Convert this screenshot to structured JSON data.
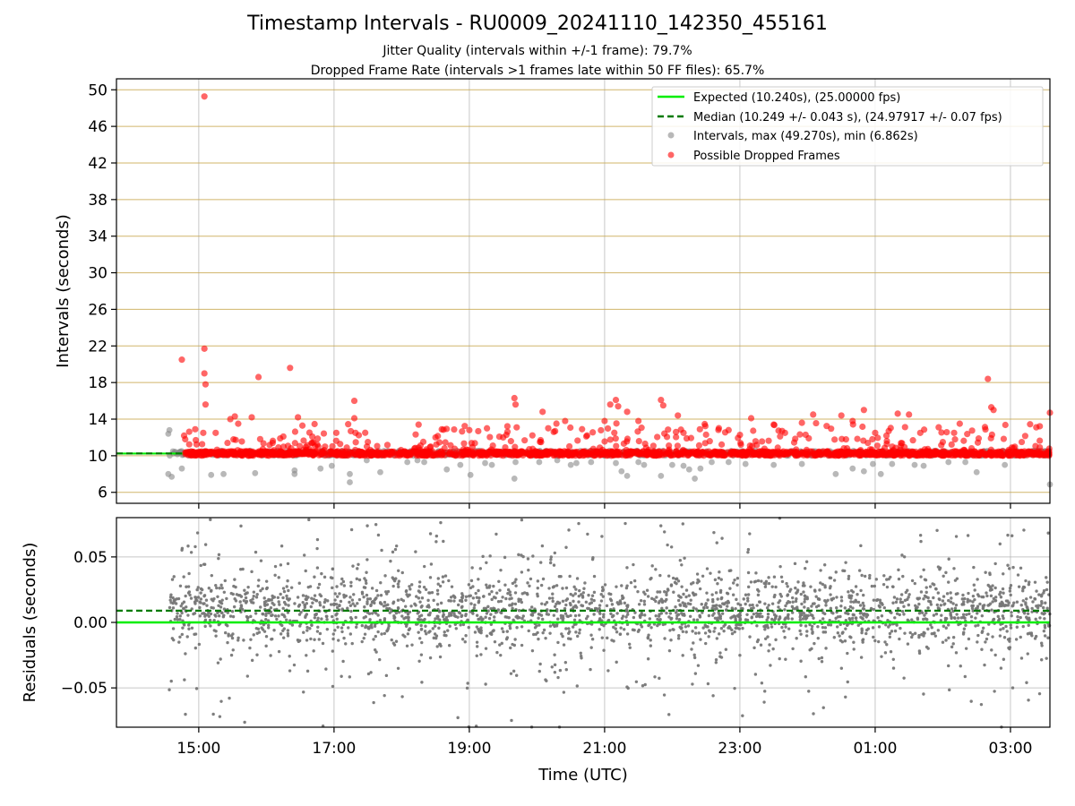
{
  "chart_data": [
    {
      "type": "scatter",
      "title": "Timestamp Intervals - RU0009_20241110_142350_455161",
      "subtitle_lines": [
        "Jitter Quality (intervals within +/-1 frame): 79.7%",
        "Dropped Frame Rate (intervals >1 frames late within 50 FF files): 65.7%"
      ],
      "xlabel": "",
      "ylabel": "Intervals (seconds)",
      "xlim": [
        "2024-11-10 13:47",
        "2024-11-11 03:35"
      ],
      "ylim": [
        4.8,
        51.2
      ],
      "y_ticks": [
        6,
        10,
        14,
        18,
        22,
        26,
        30,
        34,
        38,
        42,
        46,
        50
      ],
      "grid": true,
      "legend_position": "top-right",
      "expected_interval": 10.24,
      "median_interval": 10.249,
      "series": [
        {
          "name": "Expected (10.240s), (25.00000 fps)",
          "kind": "line",
          "color": "#00ee00",
          "value": 10.24
        },
        {
          "name": "Median (10.249 +/- 0.043 s), (24.97917 +/- 0.07 fps)",
          "kind": "dashed-line",
          "color": "#007a00",
          "value": 10.249
        },
        {
          "name": "Intervals, max (49.270s), min (6.862s)",
          "kind": "scatter",
          "color": "#888888",
          "x": [
            "2024-11-10 14:33",
            "2024-11-10 14:34",
            "2024-11-10 14:33",
            "2024-11-10 14:36",
            "2024-11-10 14:45",
            "2024-11-10 15:11",
            "2024-11-10 15:22",
            "2024-11-10 15:50",
            "2024-11-10 16:25",
            "2024-11-10 16:25",
            "2024-11-10 16:48",
            "2024-11-10 16:58",
            "2024-11-10 17:14",
            "2024-11-10 17:14",
            "2024-11-10 17:29",
            "2024-11-10 17:41",
            "2024-11-10 18:05",
            "2024-11-10 18:14",
            "2024-11-10 18:20",
            "2024-11-10 18:40",
            "2024-11-10 18:52",
            "2024-11-10 19:01",
            "2024-11-10 19:14",
            "2024-11-10 19:20",
            "2024-11-10 19:40",
            "2024-11-10 19:41",
            "2024-11-10 20:02",
            "2024-11-10 20:18",
            "2024-11-10 20:30",
            "2024-11-10 20:35",
            "2024-11-10 20:48",
            "2024-11-10 21:10",
            "2024-11-10 21:15",
            "2024-11-10 21:20",
            "2024-11-10 21:30",
            "2024-11-10 21:35",
            "2024-11-10 21:50",
            "2024-11-10 22:00",
            "2024-11-10 22:10",
            "2024-11-10 22:15",
            "2024-11-10 22:20",
            "2024-11-10 22:25",
            "2024-11-10 22:35",
            "2024-11-10 22:50",
            "2024-11-10 23:05",
            "2024-11-10 23:30",
            "2024-11-10 23:55",
            "2024-11-11 00:25",
            "2024-11-11 00:40",
            "2024-11-11 00:50",
            "2024-11-11 00:58",
            "2024-11-11 01:05",
            "2024-11-11 01:15",
            "2024-11-11 01:35",
            "2024-11-11 01:43",
            "2024-11-11 02:05",
            "2024-11-11 02:20",
            "2024-11-11 02:30",
            "2024-11-11 02:55",
            "2024-11-11 03:35"
          ],
          "y": [
            12.4,
            12.8,
            8.0,
            7.7,
            8.6,
            7.9,
            8.0,
            8.1,
            8.0,
            8.4,
            8.6,
            8.9,
            7.1,
            8.0,
            9.5,
            8.2,
            9.3,
            9.5,
            9.3,
            8.5,
            9.0,
            7.9,
            9.2,
            9.0,
            7.5,
            9.3,
            9.3,
            9.5,
            9.0,
            9.2,
            9.3,
            9.2,
            8.3,
            7.8,
            9.3,
            9.0,
            7.8,
            9.0,
            8.9,
            8.5,
            7.5,
            8.6,
            9.3,
            9.3,
            9.1,
            9.0,
            9.1,
            8.0,
            8.6,
            8.3,
            9.1,
            8.0,
            9.1,
            9.0,
            8.9,
            9.3,
            9.3,
            8.2,
            9.0,
            6.862
          ]
        },
        {
          "name": "Possible Dropped Frames",
          "kind": "scatter",
          "color": "#ff0000",
          "x": [
            "2024-11-10 14:45",
            "2024-11-10 14:47",
            "2024-11-10 14:48",
            "2024-11-10 15:04",
            "2024-11-10 15:05",
            "2024-11-10 15:05",
            "2024-11-10 15:05",
            "2024-11-10 15:06",
            "2024-11-10 15:06",
            "2024-11-10 15:15",
            "2024-11-10 15:28",
            "2024-11-10 15:32",
            "2024-11-10 15:35",
            "2024-11-10 15:47",
            "2024-11-10 15:53",
            "2024-11-10 16:21",
            "2024-11-10 16:28",
            "2024-11-10 16:52",
            "2024-11-10 17:02",
            "2024-11-10 17:18",
            "2024-11-10 17:18",
            "2024-11-10 17:19",
            "2024-11-10 17:30",
            "2024-11-10 18:15",
            "2024-11-10 18:30",
            "2024-11-10 19:00",
            "2024-11-10 19:30",
            "2024-11-10 19:40",
            "2024-11-10 19:41",
            "2024-11-10 19:42",
            "2024-11-10 20:05",
            "2024-11-10 20:10",
            "2024-11-10 20:25",
            "2024-11-10 20:40",
            "2024-11-10 21:00",
            "2024-11-10 21:05",
            "2024-11-10 21:10",
            "2024-11-10 21:12",
            "2024-11-10 21:20",
            "2024-11-10 21:30",
            "2024-11-10 21:50",
            "2024-11-10 21:52",
            "2024-11-10 22:05",
            "2024-11-10 22:10",
            "2024-11-10 22:30",
            "2024-11-10 22:50",
            "2024-11-10 23:10",
            "2024-11-10 23:30",
            "2024-11-10 23:40",
            "2024-11-10 23:55",
            "2024-11-11 00:05",
            "2024-11-11 00:30",
            "2024-11-11 00:40",
            "2024-11-11 00:50",
            "2024-11-11 01:00",
            "2024-11-11 01:10",
            "2024-11-11 01:20",
            "2024-11-11 01:30",
            "2024-11-11 01:40",
            "2024-11-11 02:00",
            "2024-11-11 02:10",
            "2024-11-11 02:15",
            "2024-11-11 02:40",
            "2024-11-11 02:43",
            "2024-11-11 02:45",
            "2024-11-11 03:10",
            "2024-11-11 03:35"
          ],
          "y": [
            20.5,
            12.2,
            11.8,
            12.5,
            49.27,
            21.7,
            19.0,
            17.8,
            15.6,
            12.5,
            14.0,
            14.3,
            13.5,
            14.2,
            18.6,
            19.6,
            14.2,
            11.0,
            12.5,
            16.0,
            14.1,
            12.5,
            11.5,
            13.4,
            12.0,
            12.8,
            12.0,
            16.3,
            15.6,
            13.1,
            14.8,
            13.0,
            13.8,
            12.9,
            13.8,
            15.6,
            16.1,
            15.4,
            14.8,
            13.8,
            16.1,
            15.5,
            14.4,
            12.5,
            12.3,
            12.8,
            14.1,
            13.4,
            12.5,
            13.6,
            14.5,
            14.4,
            13.8,
            15.0,
            12.5,
            12.2,
            14.6,
            14.5,
            12.5,
            11.5,
            12.5,
            13.5,
            18.4,
            15.3,
            15.0,
            11.5,
            14.7
          ],
          "dense_band": {
            "from": "2024-11-10 14:48",
            "to": "2024-11-11 03:35",
            "y_min": 10.0,
            "y_max": 10.5
          }
        }
      ]
    },
    {
      "type": "scatter",
      "xlabel": "Time (UTC)",
      "ylabel": "Residuals (seconds)",
      "xlim": [
        "2024-11-10 13:47",
        "2024-11-11 03:35"
      ],
      "ylim": [
        -0.08,
        0.08
      ],
      "y_ticks": [
        -0.05,
        0.0,
        0.05
      ],
      "y_tick_labels": [
        "−0.05",
        "0.00",
        "0.05"
      ],
      "x_ticks": [
        "2024-11-10 15:00",
        "2024-11-10 17:00",
        "2024-11-10 19:00",
        "2024-11-10 21:00",
        "2024-11-10 23:00",
        "2024-11-11 01:00",
        "2024-11-11 03:00"
      ],
      "x_tick_labels": [
        "15:00",
        "17:00",
        "19:00",
        "21:00",
        "23:00",
        "01:00",
        "03:00"
      ],
      "grid": true,
      "zero_line": {
        "color": "#00ee00",
        "value": 0.0
      },
      "median_line": {
        "color": "#007a00",
        "value": 0.009
      },
      "residual_points": {
        "color": "#777777",
        "from": "2024-11-10 14:33",
        "to": "2024-11-11 03:35",
        "center": 0.009,
        "core_spread": 0.012,
        "max_spread": 0.08
      }
    }
  ]
}
